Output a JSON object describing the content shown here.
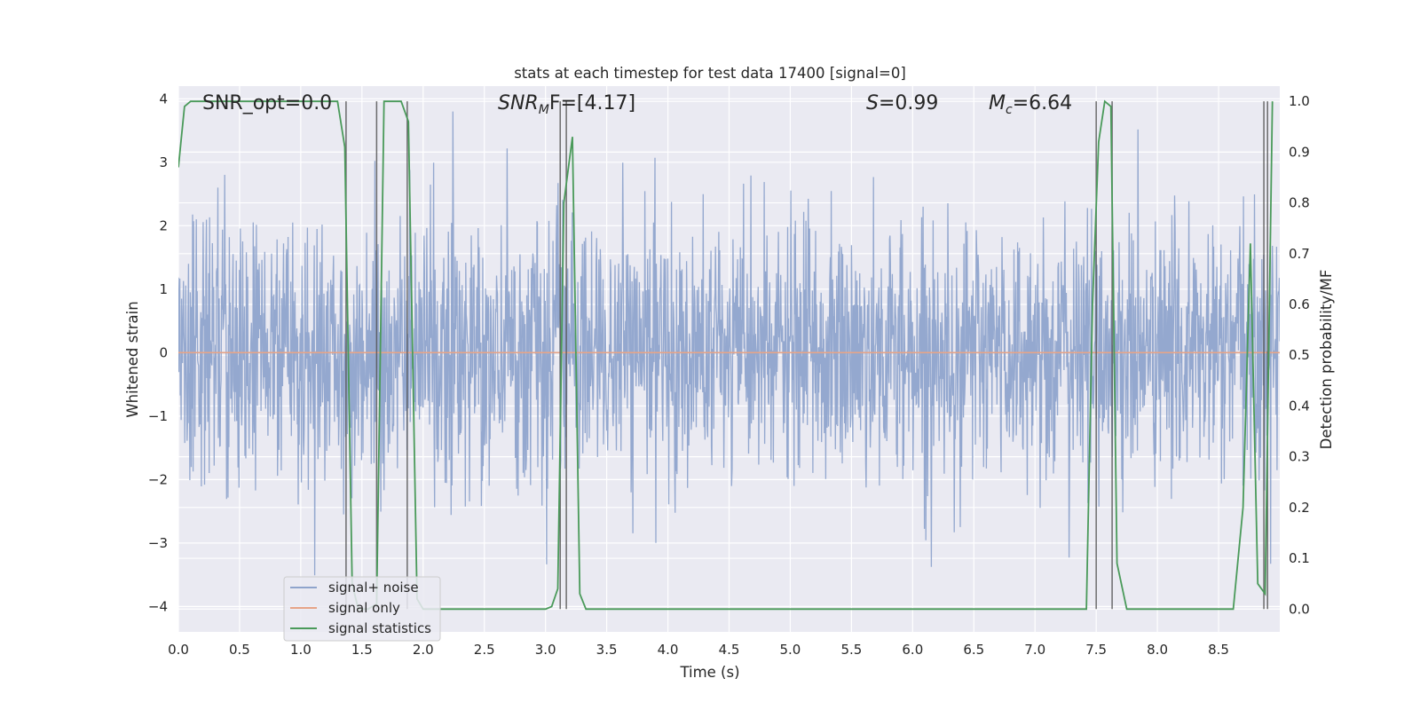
{
  "chart_data": {
    "type": "line",
    "title": "stats at each timestep for test data 17400 [signal=0]",
    "xlabel": "Time (s)",
    "ylabel": "Whitened strain",
    "ylabel_right": "Detection probability/MF",
    "xlim": [
      0.0,
      9.0
    ],
    "ylim": [
      -4.4,
      4.2
    ],
    "ylim_right": [
      -0.045,
      1.03
    ],
    "x_ticks": [
      "0.0",
      "0.5",
      "1.0",
      "1.5",
      "2.0",
      "2.5",
      "3.0",
      "3.5",
      "4.0",
      "4.5",
      "5.0",
      "5.5",
      "6.0",
      "6.5",
      "7.0",
      "7.5",
      "8.0",
      "8.5"
    ],
    "y_ticks": [
      "4",
      "3",
      "2",
      "1",
      "0",
      "−1",
      "−2",
      "−3",
      "−4"
    ],
    "y_right_ticks": [
      "1.0",
      "0.9",
      "0.8",
      "0.7",
      "0.6",
      "0.5",
      "0.4",
      "0.3",
      "0.2",
      "0.1",
      "0.0"
    ],
    "annotations": {
      "snr_opt": "SNR_opt=0.0",
      "snr_mf_main": "SNR",
      "snr_mf_sub": "M",
      "snr_mf_rest": "F=[4.17]",
      "s_var": "S",
      "s_rest": "=0.99",
      "mc_var": "M",
      "mc_sub": "c",
      "mc_rest": "=6.64"
    },
    "series": [
      {
        "name": "signal+ noise",
        "color": "#8fa4cc",
        "description_values": "white Gaussian noise, std ~1, range approx [-3.9, 3.8] over 0-9 s"
      },
      {
        "name": "signal only",
        "color": "#e6a488",
        "x": [
          0.0,
          9.0
        ],
        "y": [
          0.0,
          0.0
        ]
      },
      {
        "name": "signal statistics",
        "color": "#4a9a5a",
        "axis": "right",
        "x": [
          0.0,
          0.05,
          0.1,
          0.15,
          0.2,
          1.3,
          1.36,
          1.42,
          1.47,
          1.55,
          1.62,
          1.68,
          1.73,
          1.82,
          1.88,
          1.95,
          2.0,
          2.1,
          2.2,
          3.0,
          3.05,
          3.1,
          3.15,
          3.22,
          3.28,
          3.33,
          3.4,
          7.42,
          7.47,
          7.52,
          7.57,
          7.62,
          7.67,
          7.75,
          8.62,
          8.7,
          8.76,
          8.82,
          8.88,
          8.94
        ],
        "y": [
          0.87,
          0.99,
          1.0,
          1.0,
          1.0,
          1.0,
          0.91,
          0.05,
          0.0,
          0.0,
          0.01,
          1.0,
          1.0,
          1.0,
          0.96,
          0.02,
          0.0,
          0.0,
          0.0,
          0.0,
          0.005,
          0.04,
          0.8,
          0.93,
          0.03,
          0.0,
          0.0,
          0.0,
          0.6,
          0.92,
          1.0,
          0.99,
          0.09,
          0.0,
          0.0,
          0.2,
          0.72,
          0.05,
          0.03,
          1.0
        ]
      }
    ],
    "vertical_lines_x": [
      1.37,
      1.62,
      1.87,
      3.12,
      3.17,
      7.5,
      7.63,
      8.87,
      8.9
    ],
    "vertical_lines_range_right": [
      0.0,
      1.0
    ],
    "grid": true,
    "legend_position": "lower-left"
  },
  "legend": {
    "items": [
      "signal+ noise",
      "signal only",
      "signal statistics"
    ]
  },
  "colors": {
    "axes_bg": "#eaeaf2",
    "grid": "#ffffff",
    "noise": "#8fa4cc",
    "signal": "#e6a488",
    "stats": "#4a9a5a",
    "vline": "#555555"
  }
}
